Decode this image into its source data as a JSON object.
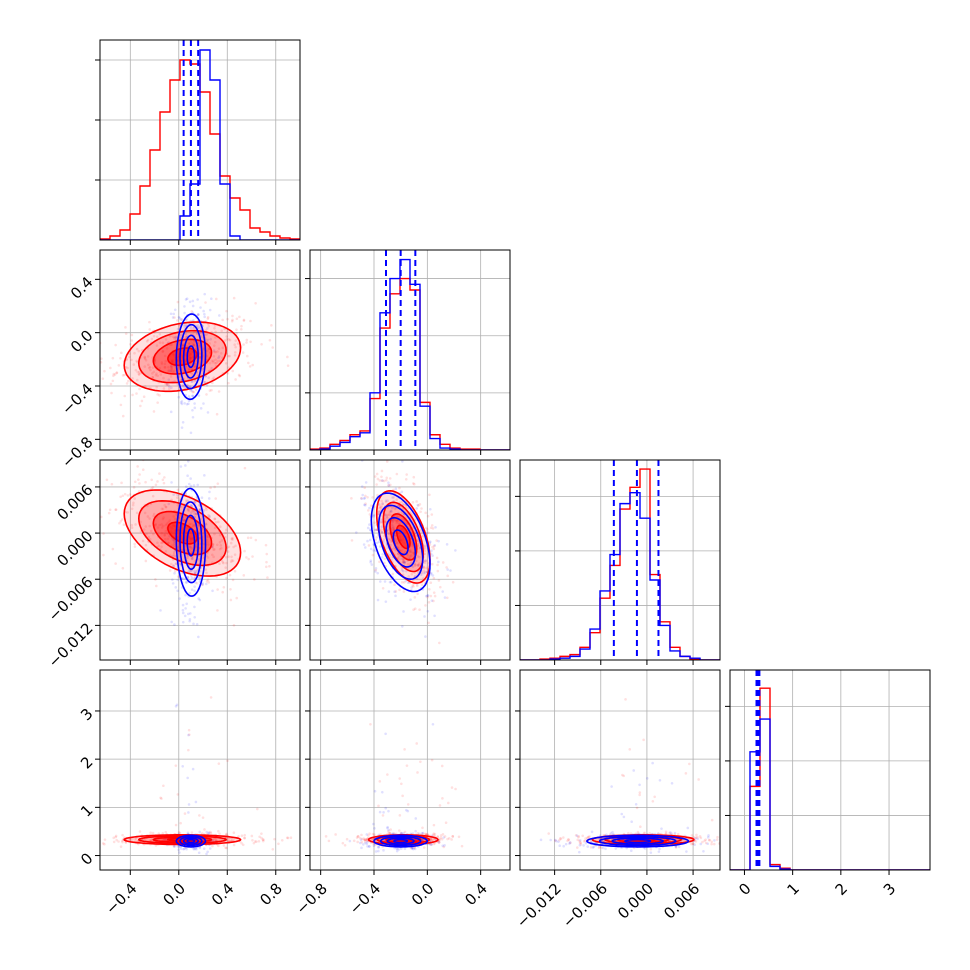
{
  "chart_data": {
    "type": "corner",
    "description_note": "",
    "parameters": 4,
    "colors": {
      "series_a": "#0000ff",
      "series_b": "#ff0000"
    },
    "grid": true,
    "axes": {
      "p0": {
        "range": [
          -0.65,
          1.0
        ],
        "ticks": [
          -0.4,
          0.0,
          0.4,
          0.8
        ],
        "tick_labels": [
          "−0.4",
          "0.0",
          "0.4",
          "0.8"
        ]
      },
      "p1": {
        "range": [
          -0.88,
          0.62
        ],
        "ticks": [
          -0.8,
          -0.4,
          0.0,
          0.4
        ],
        "tick_labels": [
          "−0.8",
          "−0.4",
          "0.0",
          "0.4"
        ]
      },
      "p2": {
        "range": [
          -0.0165,
          0.0095
        ],
        "ticks": [
          -0.012,
          -0.006,
          0.0,
          0.006
        ],
        "tick_labels": [
          "−0.012",
          "−0.006",
          "0.000",
          "0.006"
        ]
      },
      "p3": {
        "range": [
          -0.3,
          3.85
        ],
        "ticks": [
          0,
          1,
          2,
          3
        ],
        "tick_labels": [
          "0",
          "1",
          "2",
          "3"
        ]
      }
    },
    "marginals": [
      {
        "param": "p0",
        "quantiles_series_a": [
          0.04,
          0.1,
          0.16
        ],
        "series_a": {
          "edges_from": -0.65,
          "bin_width": 0.0825,
          "counts": [
            0,
            0,
            0,
            0,
            0,
            0,
            0,
            0,
            0.12,
            0.28,
            0.95,
            0.8,
            0.28,
            0.02,
            0,
            0,
            0,
            0,
            0,
            0
          ]
        },
        "series_b": {
          "edges_from": -0.65,
          "bin_width": 0.0825,
          "counts": [
            0.005,
            0.02,
            0.05,
            0.13,
            0.27,
            0.45,
            0.64,
            0.8,
            0.9,
            0.88,
            0.74,
            0.53,
            0.32,
            0.21,
            0.15,
            0.06,
            0.04,
            0.02,
            0.01,
            0.005
          ]
        },
        "ymax": 1.0
      },
      {
        "param": "p1",
        "quantiles_series_a": [
          -0.31,
          -0.2,
          -0.09
        ],
        "series_a": {
          "edges_from": -0.88,
          "bin_width": 0.075,
          "counts": [
            0,
            0.005,
            0.02,
            0.04,
            0.07,
            0.09,
            0.3,
            0.72,
            0.9,
            1.0,
            0.87,
            0.23,
            0.06,
            0.01,
            0.005,
            0,
            0,
            0,
            0,
            0
          ]
        },
        "series_b": {
          "edges_from": -0.88,
          "bin_width": 0.075,
          "counts": [
            0.005,
            0.01,
            0.03,
            0.05,
            0.08,
            0.1,
            0.27,
            0.64,
            0.82,
            0.9,
            0.84,
            0.25,
            0.08,
            0.03,
            0.01,
            0.005,
            0.005,
            0,
            0,
            0
          ]
        },
        "ymax": 1.05
      },
      {
        "param": "p2",
        "quantiles_series_a": [
          -0.0043,
          -0.0013,
          0.0015
        ],
        "series_a": {
          "edges_from": -0.0165,
          "bin_width": 0.0013,
          "counts": [
            0,
            0,
            0,
            0.005,
            0.01,
            0.02,
            0.06,
            0.17,
            0.38,
            0.58,
            0.86,
            0.92,
            0.78,
            0.44,
            0.19,
            0.05,
            0.02,
            0.01,
            0,
            0
          ]
        },
        "series_b": {
          "edges_from": -0.0165,
          "bin_width": 0.0013,
          "counts": [
            0,
            0,
            0.005,
            0.01,
            0.02,
            0.03,
            0.07,
            0.15,
            0.34,
            0.52,
            0.83,
            0.95,
            1.05,
            0.47,
            0.21,
            0.07,
            0.02,
            0.005,
            0,
            0
          ]
        },
        "ymax": 1.1
      },
      {
        "param": "p3",
        "quantiles_series_a": [
          0.25,
          0.28,
          0.31
        ],
        "series_a": {
          "edges_from": -0.3,
          "bin_width": 0.2075,
          "counts": [
            0,
            0,
            0.65,
            0.83,
            0.02,
            0.005,
            0,
            0,
            0,
            0,
            0,
            0,
            0,
            0,
            0,
            0,
            0,
            0,
            0,
            0
          ]
        },
        "series_b": {
          "edges_from": -0.3,
          "bin_width": 0.2075,
          "counts": [
            0,
            0,
            0.46,
            1.0,
            0.03,
            0.01,
            0,
            0,
            0,
            0,
            0,
            0,
            0,
            0,
            0,
            0,
            0,
            0,
            0,
            0
          ]
        },
        "ymax": 1.1
      }
    ],
    "joint": [
      {
        "x": "p0",
        "y": "p1",
        "series_a": {
          "center": [
            0.1,
            -0.18
          ],
          "sd": [
            0.06,
            0.16
          ],
          "rho": 0.05
        },
        "series_b": {
          "center": [
            0.03,
            -0.18
          ],
          "sd": [
            0.24,
            0.13
          ],
          "rho": 0.25
        }
      },
      {
        "x": "p0",
        "y": "p2",
        "series_a": {
          "center": [
            0.1,
            -0.0012
          ],
          "sd": [
            0.06,
            0.0035
          ],
          "rho": -0.05
        },
        "series_b": {
          "center": [
            0.03,
            0.0
          ],
          "sd": [
            0.24,
            0.0028
          ],
          "rho": -0.45
        }
      },
      {
        "x": "p1",
        "y": "p2",
        "series_a": {
          "center": [
            -0.2,
            -0.0012
          ],
          "sd": [
            0.11,
            0.0032
          ],
          "rho": -0.45
        },
        "series_b": {
          "center": [
            -0.18,
            -0.0005
          ],
          "sd": [
            0.1,
            0.003
          ],
          "rho": -0.5
        }
      },
      {
        "x": "p0",
        "y": "p3",
        "series_a": {
          "center": [
            0.1,
            0.3
          ],
          "sd": [
            0.06,
            0.06
          ],
          "rho": 0.0
        },
        "series_b": {
          "center": [
            0.03,
            0.33
          ],
          "sd": [
            0.24,
            0.05
          ],
          "rho": 0.0
        }
      },
      {
        "x": "p1",
        "y": "p3",
        "series_a": {
          "center": [
            -0.2,
            0.3
          ],
          "sd": [
            0.1,
            0.06
          ],
          "rho": 0.0
        },
        "series_b": {
          "center": [
            -0.18,
            0.33
          ],
          "sd": [
            0.13,
            0.05
          ],
          "rho": 0.0
        }
      },
      {
        "x": "p2",
        "y": "p3",
        "series_a": {
          "center": [
            -0.0012,
            0.3
          ],
          "sd": [
            0.0033,
            0.06
          ],
          "rho": 0.0
        },
        "series_b": {
          "center": [
            -0.0005,
            0.33
          ],
          "sd": [
            0.0033,
            0.05
          ],
          "rho": 0.0
        }
      }
    ],
    "contour_levels_sigma": [
      0.5,
      1.0,
      1.5,
      2.0
    ]
  }
}
